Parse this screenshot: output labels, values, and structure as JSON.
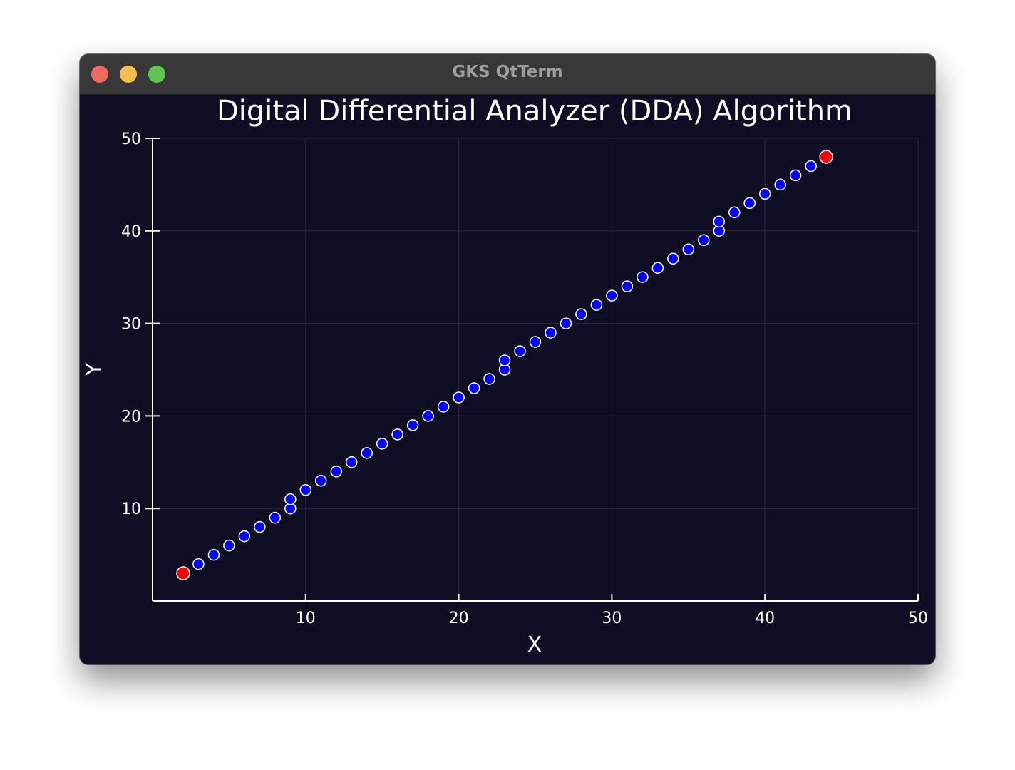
{
  "window": {
    "title": "GKS QtTerm",
    "controls": {
      "close_color": "#ec6a5e",
      "minimize_color": "#f4bf4f",
      "maximize_color": "#61c554"
    }
  },
  "colors": {
    "background": "#0f0d24",
    "axis": "#ffffff",
    "grid": "#2a2840",
    "point_fill": "#0000ff",
    "endpoint_fill": "#ff0000",
    "marker_edge": "#ffffff"
  },
  "chart_data": {
    "type": "scatter",
    "title": "Digital Differential Analyzer (DDA) Algorithm",
    "xlabel": "X",
    "ylabel": "Y",
    "xlim": [
      0,
      50
    ],
    "ylim": [
      0,
      50
    ],
    "xticks": [
      10,
      20,
      30,
      40,
      50
    ],
    "yticks": [
      10,
      20,
      30,
      40,
      50
    ],
    "grid": true,
    "series": [
      {
        "role": "points",
        "color": "#0000ff",
        "x": [
          3,
          4,
          5,
          6,
          7,
          8,
          9,
          9,
          10,
          11,
          12,
          13,
          14,
          15,
          16,
          17,
          18,
          19,
          20,
          21,
          22,
          23,
          23,
          24,
          25,
          26,
          27,
          28,
          29,
          30,
          31,
          32,
          33,
          34,
          35,
          36,
          37,
          37,
          38,
          39,
          40,
          41,
          42,
          43
        ],
        "y": [
          4,
          5,
          6,
          7,
          8,
          9,
          10,
          11,
          12,
          13,
          14,
          15,
          16,
          17,
          18,
          19,
          20,
          21,
          22,
          23,
          24,
          25,
          26,
          27,
          28,
          29,
          30,
          31,
          32,
          33,
          34,
          35,
          36,
          37,
          38,
          39,
          40,
          41,
          42,
          43,
          44,
          45,
          46,
          47
        ]
      },
      {
        "role": "endpoints",
        "color": "#ff0000",
        "x": [
          2,
          44
        ],
        "y": [
          3,
          48
        ]
      }
    ]
  }
}
